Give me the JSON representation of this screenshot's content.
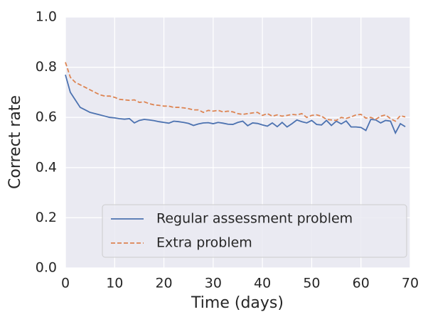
{
  "chart_data": {
    "type": "line",
    "xlabel": "Time (days)",
    "ylabel": "Correct rate",
    "x": [
      0,
      1,
      2,
      3,
      4,
      5,
      6,
      7,
      8,
      9,
      10,
      11,
      12,
      13,
      14,
      15,
      16,
      17,
      18,
      19,
      20,
      21,
      22,
      23,
      24,
      25,
      26,
      27,
      28,
      29,
      30,
      31,
      32,
      33,
      34,
      35,
      36,
      37,
      38,
      39,
      40,
      41,
      42,
      43,
      44,
      45,
      46,
      47,
      48,
      49,
      50,
      51,
      52,
      53,
      54,
      55,
      56,
      57,
      58,
      59,
      60,
      61,
      62,
      63,
      64,
      65,
      66,
      67,
      68,
      69
    ],
    "series": [
      {
        "name": "Regular assessment problem",
        "color": "#4c72b0",
        "linestyle": "solid",
        "values": [
          0.77,
          0.7,
          0.67,
          0.64,
          0.63,
          0.62,
          0.615,
          0.61,
          0.605,
          0.6,
          0.598,
          0.595,
          0.593,
          0.595,
          0.578,
          0.588,
          0.592,
          0.59,
          0.587,
          0.583,
          0.58,
          0.577,
          0.585,
          0.583,
          0.58,
          0.576,
          0.568,
          0.574,
          0.578,
          0.579,
          0.575,
          0.58,
          0.577,
          0.573,
          0.572,
          0.58,
          0.585,
          0.567,
          0.578,
          0.576,
          0.57,
          0.565,
          0.578,
          0.563,
          0.58,
          0.562,
          0.575,
          0.59,
          0.583,
          0.578,
          0.588,
          0.572,
          0.57,
          0.588,
          0.568,
          0.585,
          0.574,
          0.586,
          0.562,
          0.562,
          0.56,
          0.548,
          0.592,
          0.59,
          0.578,
          0.588,
          0.585,
          0.538,
          0.575,
          0.563
        ]
      },
      {
        "name": "Extra problem",
        "color": "#dd8452",
        "linestyle": "dashed",
        "values": [
          0.82,
          0.76,
          0.74,
          0.73,
          0.72,
          0.71,
          0.7,
          0.69,
          0.685,
          0.685,
          0.68,
          0.672,
          0.67,
          0.668,
          0.67,
          0.66,
          0.662,
          0.655,
          0.65,
          0.648,
          0.645,
          0.645,
          0.64,
          0.64,
          0.638,
          0.635,
          0.63,
          0.63,
          0.62,
          0.628,
          0.625,
          0.628,
          0.622,
          0.625,
          0.622,
          0.615,
          0.612,
          0.615,
          0.618,
          0.62,
          0.608,
          0.615,
          0.605,
          0.61,
          0.605,
          0.608,
          0.612,
          0.61,
          0.615,
          0.6,
          0.608,
          0.61,
          0.605,
          0.592,
          0.59,
          0.588,
          0.6,
          0.596,
          0.602,
          0.61,
          0.612,
          0.597,
          0.6,
          0.592,
          0.605,
          0.61,
          0.595,
          0.585,
          0.607,
          0.602
        ]
      }
    ],
    "xlim": [
      0,
      70
    ],
    "xticks": [
      0,
      10,
      20,
      30,
      40,
      50,
      60,
      70
    ],
    "ylim": [
      0,
      1
    ],
    "yticks": [
      {
        "value": 0,
        "label": "0.0"
      },
      0.2,
      0.4,
      0.6,
      0.8,
      {
        "value": 1,
        "label": "1.0"
      }
    ],
    "grid": true,
    "legend": "lower right"
  }
}
